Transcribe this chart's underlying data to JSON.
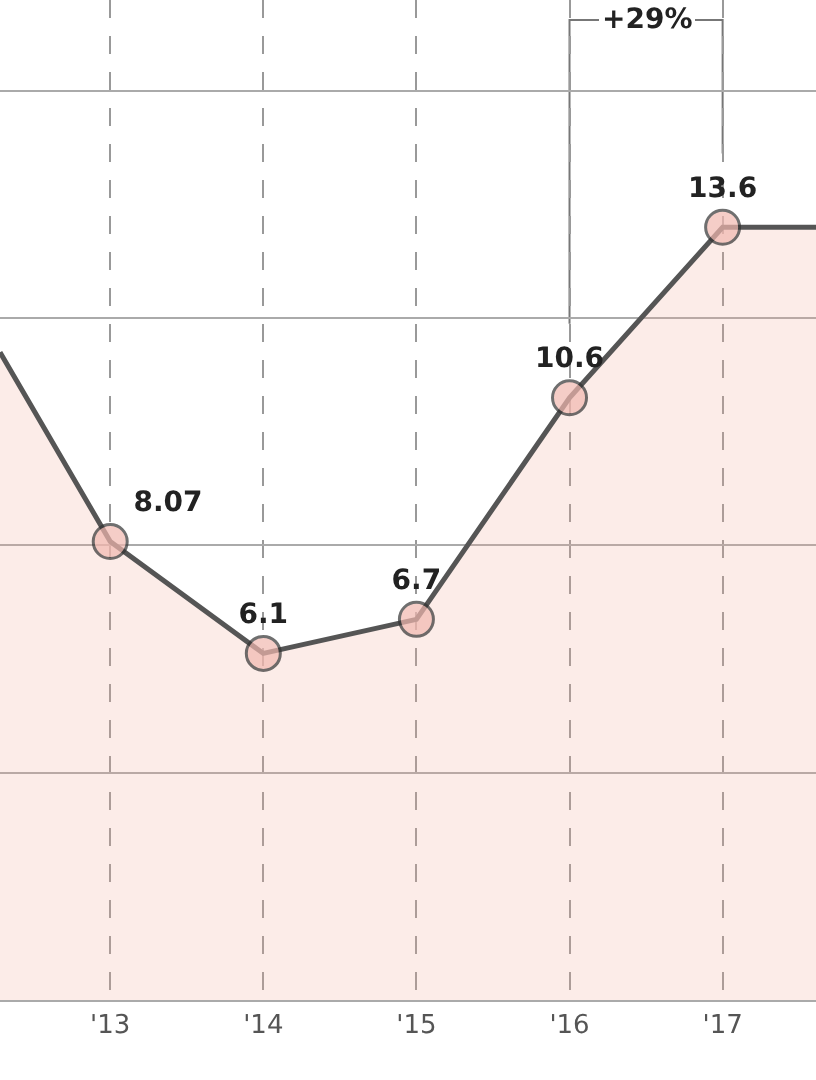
{
  "chart_data": {
    "type": "area",
    "x": [
      2012.28,
      2013,
      2014,
      2015,
      2016,
      2017,
      2017.61
    ],
    "values": [
      11.4,
      8.07,
      6.1,
      6.7,
      10.6,
      13.6,
      13.6
    ],
    "value_labels": [
      null,
      "8.07",
      "6.1",
      "6.7",
      "10.6",
      "13.6",
      null
    ],
    "color": "#555555",
    "marker": "circle",
    "xlim": [
      2012.28,
      2017.61
    ],
    "xticks": [
      {
        "value": 2013,
        "label": "'13"
      },
      {
        "value": 2014,
        "label": "'14"
      },
      {
        "value": 2015,
        "label": "'15"
      },
      {
        "value": 2016,
        "label": "'16"
      },
      {
        "value": 2017,
        "label": "'17"
      }
    ],
    "ylim": [
      0,
      17.6
    ],
    "yticks": [
      {
        "value": 4,
        "label": null
      },
      {
        "value": 8,
        "label": null
      },
      {
        "value": 12,
        "label": null
      },
      {
        "value": 16,
        "label": null
      }
    ],
    "tick_labels": "x",
    "grid": true,
    "annotations": [
      "+29%"
    ]
  }
}
